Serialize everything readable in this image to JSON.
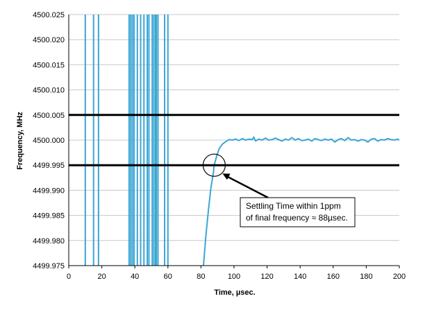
{
  "chart_data": {
    "type": "line",
    "title": "",
    "xlabel": "Time, µsec.",
    "ylabel": "Frequency, MHz",
    "xlim": [
      0,
      200
    ],
    "ylim": [
      4499.975,
      4500.025
    ],
    "x_ticks": [
      "0",
      "20",
      "40",
      "60",
      "80",
      "100",
      "120",
      "140",
      "160",
      "180",
      "200"
    ],
    "y_ticks": [
      "4499.975",
      "4499.980",
      "4499.985",
      "4499.990",
      "4499.995",
      "4500.000",
      "4500.005",
      "4500.010",
      "4500.015",
      "4500.020",
      "4500.025"
    ],
    "grid": {
      "y": true,
      "x": false
    },
    "series": [
      {
        "name": "",
        "color": "#3aa6d4",
        "spikes_x": [
          10,
          15,
          18,
          36.5,
          37.5,
          38.5,
          39.5,
          41.5,
          43.5,
          45.5,
          47.5,
          48.5,
          50.5,
          51.5,
          52.5,
          53,
          54,
          58,
          60
        ],
        "x": [
          81.5,
          83,
          84.5,
          86,
          87.5,
          88,
          89.5,
          91,
          93,
          95,
          97,
          99,
          101,
          103,
          105,
          107,
          109,
          111,
          112,
          113,
          115,
          117,
          119,
          121,
          123,
          125,
          127,
          129,
          131,
          133,
          135,
          137,
          139,
          141,
          143,
          145,
          147,
          149,
          151,
          153,
          155,
          157,
          159,
          161,
          163,
          165,
          167,
          169,
          171,
          173,
          175,
          177,
          179,
          181,
          183,
          185,
          187,
          189,
          191,
          193,
          195,
          197,
          199,
          200
        ],
        "y": [
          4499.975,
          4499.981,
          4499.986,
          4499.9905,
          4499.9935,
          4499.995,
          4499.9968,
          4499.9983,
          4499.9992,
          4499.9997,
          4500.0001,
          4500.0,
          4500.0002,
          4499.9999,
          4500.0003,
          4500.0,
          4500.0002,
          4500.0001,
          4500.0006,
          4499.9998,
          4500.0002,
          4500.0,
          4500.0004,
          4500.0,
          4500.0001,
          4500.0004,
          4500.0001,
          4499.9998,
          4500.0002,
          4500.0,
          4500.0005,
          4500.0,
          4500.0003,
          4499.9999,
          4500.0,
          4500.0002,
          4499.9998,
          4500.0003,
          4500.0001,
          4499.9999,
          4500.0002,
          4500.0,
          4500.0002,
          4499.9996,
          4500.0001,
          4500.0003,
          4499.9999,
          4500.0005,
          4500.0,
          4500.0001,
          4499.9998,
          4500.0001,
          4500.0,
          4499.9996,
          4500.0002,
          4500.0003,
          4499.9998,
          4500.0001,
          4500.0,
          4500.0003,
          4500.0001,
          4500.0,
          4500.0002,
          4500.0
        ]
      }
    ],
    "reference_lines": [
      {
        "y": 4500.005,
        "color": "#000000"
      },
      {
        "y": 4499.995,
        "color": "#000000"
      }
    ],
    "annotation": {
      "line1": "Settling Time within 1ppm",
      "line2": "of final frequency ≈ 88µsec.",
      "target_x": 88,
      "target_y": 4499.995
    }
  }
}
